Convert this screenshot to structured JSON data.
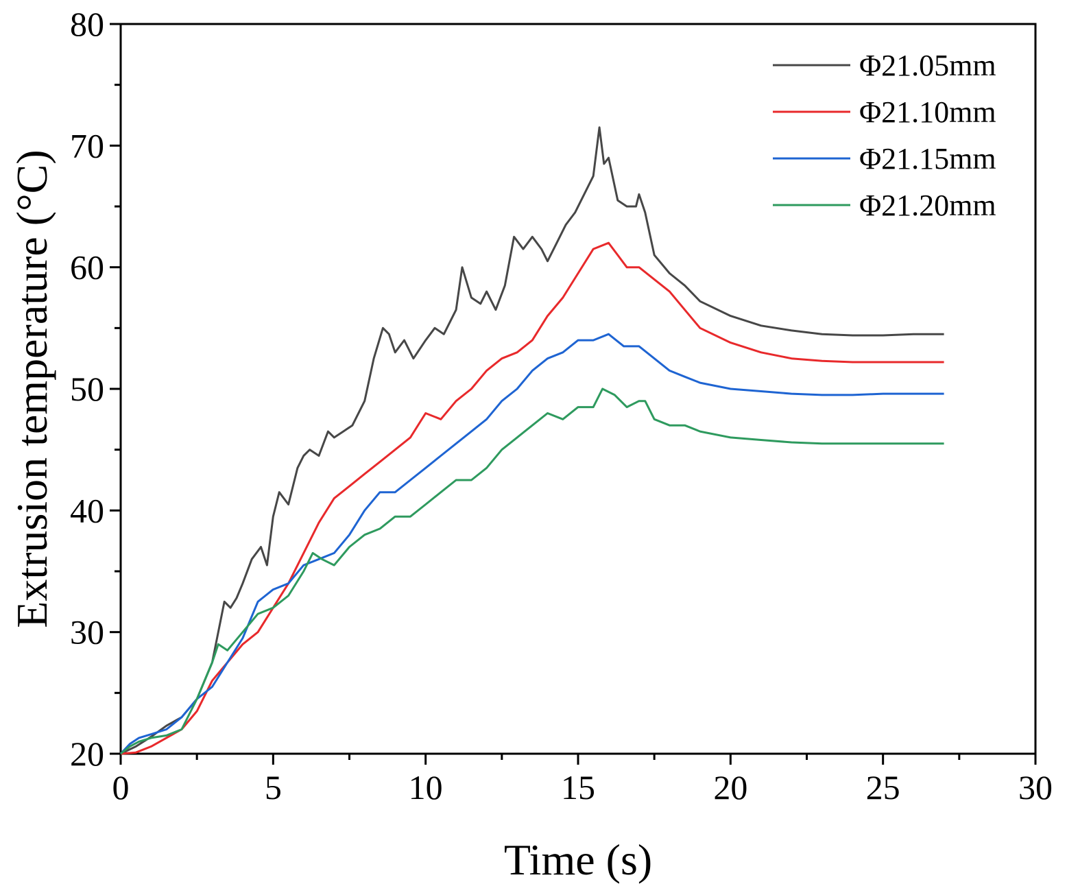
{
  "chart_data": {
    "type": "line",
    "title": "",
    "xlabel": "Time (s)",
    "ylabel": "Extrusion temperature (°C)",
    "xlim": [
      0,
      30
    ],
    "ylim": [
      20,
      80
    ],
    "xticks": [
      0,
      5,
      10,
      15,
      20,
      25,
      30
    ],
    "yticks": [
      20,
      30,
      40,
      50,
      60,
      70,
      80
    ],
    "xtick_labels": [
      "0",
      "5",
      "10",
      "15",
      "20",
      "25",
      "30"
    ],
    "ytick_labels": [
      "20",
      "30",
      "40",
      "50",
      "60",
      "70",
      "80"
    ],
    "grid": false,
    "legend_position": "top-right",
    "series": [
      {
        "name": "Φ21.05mm",
        "color": "#474747",
        "points": [
          [
            0,
            20
          ],
          [
            0.5,
            20.6
          ],
          [
            1,
            21.4
          ],
          [
            1.5,
            22.3
          ],
          [
            2,
            23.0
          ],
          [
            2.5,
            24.5
          ],
          [
            3,
            27.5
          ],
          [
            3.2,
            30.0
          ],
          [
            3.4,
            32.5
          ],
          [
            3.6,
            32.0
          ],
          [
            3.8,
            32.8
          ],
          [
            4,
            34.0
          ],
          [
            4.3,
            36.0
          ],
          [
            4.6,
            37.0
          ],
          [
            4.8,
            35.5
          ],
          [
            5,
            39.5
          ],
          [
            5.2,
            41.5
          ],
          [
            5.5,
            40.5
          ],
          [
            5.8,
            43.5
          ],
          [
            6,
            44.5
          ],
          [
            6.2,
            45.0
          ],
          [
            6.5,
            44.5
          ],
          [
            6.8,
            46.5
          ],
          [
            7,
            46.0
          ],
          [
            7.3,
            46.5
          ],
          [
            7.6,
            47.0
          ],
          [
            8,
            49.0
          ],
          [
            8.3,
            52.5
          ],
          [
            8.6,
            55.0
          ],
          [
            8.8,
            54.5
          ],
          [
            9,
            53.0
          ],
          [
            9.3,
            54.0
          ],
          [
            9.6,
            52.5
          ],
          [
            10,
            54.0
          ],
          [
            10.3,
            55.0
          ],
          [
            10.6,
            54.5
          ],
          [
            11,
            56.5
          ],
          [
            11.2,
            60.0
          ],
          [
            11.5,
            57.5
          ],
          [
            11.8,
            57.0
          ],
          [
            12,
            58.0
          ],
          [
            12.3,
            56.5
          ],
          [
            12.6,
            58.5
          ],
          [
            12.9,
            62.5
          ],
          [
            13.2,
            61.5
          ],
          [
            13.5,
            62.5
          ],
          [
            13.8,
            61.5
          ],
          [
            14,
            60.5
          ],
          [
            14.3,
            62.0
          ],
          [
            14.6,
            63.5
          ],
          [
            14.9,
            64.5
          ],
          [
            15.2,
            66.0
          ],
          [
            15.5,
            67.5
          ],
          [
            15.7,
            71.5
          ],
          [
            15.85,
            68.5
          ],
          [
            16,
            69.0
          ],
          [
            16.3,
            65.5
          ],
          [
            16.6,
            65.0
          ],
          [
            16.9,
            65.0
          ],
          [
            17.0,
            66.0
          ],
          [
            17.2,
            64.5
          ],
          [
            17.5,
            61.0
          ],
          [
            18,
            59.5
          ],
          [
            18.5,
            58.5
          ],
          [
            19,
            57.2
          ],
          [
            20,
            56.0
          ],
          [
            21,
            55.2
          ],
          [
            22,
            54.8
          ],
          [
            23,
            54.5
          ],
          [
            24,
            54.4
          ],
          [
            25,
            54.4
          ],
          [
            26,
            54.5
          ],
          [
            27,
            54.5
          ]
        ]
      },
      {
        "name": "Φ21.10mm",
        "color": "#e8292b",
        "points": [
          [
            0,
            20
          ],
          [
            0.5,
            20.1
          ],
          [
            1,
            20.6
          ],
          [
            1.5,
            21.3
          ],
          [
            2,
            22.0
          ],
          [
            2.5,
            23.5
          ],
          [
            3,
            26.0
          ],
          [
            3.5,
            27.5
          ],
          [
            4,
            29.0
          ],
          [
            4.5,
            30.0
          ],
          [
            5,
            32.0
          ],
          [
            5.5,
            34.0
          ],
          [
            6,
            36.5
          ],
          [
            6.5,
            39.0
          ],
          [
            7,
            41.0
          ],
          [
            7.5,
            42.0
          ],
          [
            8,
            43.0
          ],
          [
            8.5,
            44.0
          ],
          [
            9,
            45.0
          ],
          [
            9.5,
            46.0
          ],
          [
            10,
            48.0
          ],
          [
            10.5,
            47.5
          ],
          [
            11,
            49.0
          ],
          [
            11.5,
            50.0
          ],
          [
            12,
            51.5
          ],
          [
            12.5,
            52.5
          ],
          [
            13,
            53.0
          ],
          [
            13.5,
            54.0
          ],
          [
            14,
            56.0
          ],
          [
            14.5,
            57.5
          ],
          [
            15,
            59.5
          ],
          [
            15.5,
            61.5
          ],
          [
            16,
            62.0
          ],
          [
            16.3,
            61.0
          ],
          [
            16.6,
            60.0
          ],
          [
            17,
            60.0
          ],
          [
            17.5,
            59.0
          ],
          [
            18,
            58.0
          ],
          [
            18.5,
            56.5
          ],
          [
            19,
            55.0
          ],
          [
            20,
            53.8
          ],
          [
            21,
            53.0
          ],
          [
            22,
            52.5
          ],
          [
            23,
            52.3
          ],
          [
            24,
            52.2
          ],
          [
            25,
            52.2
          ],
          [
            26,
            52.2
          ],
          [
            27,
            52.2
          ]
        ]
      },
      {
        "name": "Φ21.15mm",
        "color": "#1e64d2",
        "points": [
          [
            0,
            20
          ],
          [
            0.3,
            20.8
          ],
          [
            0.6,
            21.3
          ],
          [
            1,
            21.6
          ],
          [
            1.5,
            22.0
          ],
          [
            2,
            23.0
          ],
          [
            2.5,
            24.5
          ],
          [
            3,
            25.5
          ],
          [
            3.5,
            27.5
          ],
          [
            4,
            29.5
          ],
          [
            4.5,
            32.5
          ],
          [
            5,
            33.5
          ],
          [
            5.5,
            34.0
          ],
          [
            6,
            35.5
          ],
          [
            6.5,
            36.0
          ],
          [
            7,
            36.5
          ],
          [
            7.5,
            38.0
          ],
          [
            8,
            40.0
          ],
          [
            8.5,
            41.5
          ],
          [
            9,
            41.5
          ],
          [
            9.5,
            42.5
          ],
          [
            10,
            43.5
          ],
          [
            10.5,
            44.5
          ],
          [
            11,
            45.5
          ],
          [
            11.5,
            46.5
          ],
          [
            12,
            47.5
          ],
          [
            12.5,
            49.0
          ],
          [
            13,
            50.0
          ],
          [
            13.5,
            51.5
          ],
          [
            14,
            52.5
          ],
          [
            14.5,
            53.0
          ],
          [
            15,
            54.0
          ],
          [
            15.5,
            54.0
          ],
          [
            16,
            54.5
          ],
          [
            16.5,
            53.5
          ],
          [
            17,
            53.5
          ],
          [
            17.5,
            52.5
          ],
          [
            18,
            51.5
          ],
          [
            18.5,
            51.0
          ],
          [
            19,
            50.5
          ],
          [
            20,
            50.0
          ],
          [
            21,
            49.8
          ],
          [
            22,
            49.6
          ],
          [
            23,
            49.5
          ],
          [
            24,
            49.5
          ],
          [
            25,
            49.6
          ],
          [
            26,
            49.6
          ],
          [
            27,
            49.6
          ]
        ]
      },
      {
        "name": "Φ21.20mm",
        "color": "#2e9a5e",
        "points": [
          [
            0,
            20
          ],
          [
            0.3,
            20.6
          ],
          [
            0.6,
            21.0
          ],
          [
            1,
            21.3
          ],
          [
            1.5,
            21.5
          ],
          [
            2,
            22.0
          ],
          [
            2.5,
            24.5
          ],
          [
            3,
            27.5
          ],
          [
            3.2,
            29.0
          ],
          [
            3.5,
            28.5
          ],
          [
            4,
            30.0
          ],
          [
            4.5,
            31.5
          ],
          [
            5,
            32.0
          ],
          [
            5.5,
            33.0
          ],
          [
            6,
            35.0
          ],
          [
            6.3,
            36.5
          ],
          [
            6.6,
            36.0
          ],
          [
            7,
            35.5
          ],
          [
            7.5,
            37.0
          ],
          [
            8,
            38.0
          ],
          [
            8.5,
            38.5
          ],
          [
            9,
            39.5
          ],
          [
            9.5,
            39.5
          ],
          [
            10,
            40.5
          ],
          [
            10.5,
            41.5
          ],
          [
            11,
            42.5
          ],
          [
            11.5,
            42.5
          ],
          [
            12,
            43.5
          ],
          [
            12.5,
            45.0
          ],
          [
            13,
            46.0
          ],
          [
            13.5,
            47.0
          ],
          [
            14,
            48.0
          ],
          [
            14.5,
            47.5
          ],
          [
            15,
            48.5
          ],
          [
            15.5,
            48.5
          ],
          [
            15.8,
            50.0
          ],
          [
            16.2,
            49.5
          ],
          [
            16.6,
            48.5
          ],
          [
            17,
            49.0
          ],
          [
            17.2,
            49.0
          ],
          [
            17.5,
            47.5
          ],
          [
            18,
            47.0
          ],
          [
            18.5,
            47.0
          ],
          [
            19,
            46.5
          ],
          [
            20,
            46.0
          ],
          [
            21,
            45.8
          ],
          [
            22,
            45.6
          ],
          [
            23,
            45.5
          ],
          [
            24,
            45.5
          ],
          [
            25,
            45.5
          ],
          [
            26,
            45.5
          ],
          [
            27,
            45.5
          ]
        ]
      }
    ]
  }
}
